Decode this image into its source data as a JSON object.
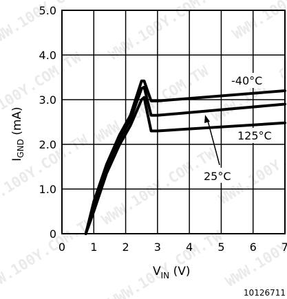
{
  "chart_data": {
    "type": "line",
    "title": "",
    "xlabel": "V",
    "xlabel_subscript": "IN",
    "xlabel_unit": "(V)",
    "ylabel": "I",
    "ylabel_subscript": "GND",
    "ylabel_unit": "(mA)",
    "xlim": [
      0,
      7
    ],
    "ylim": [
      0,
      5
    ],
    "x_ticks": [
      "0",
      "1",
      "2",
      "3",
      "4",
      "5",
      "6",
      "7"
    ],
    "y_ticks": [
      "0",
      "1.0",
      "2.0",
      "3.0",
      "4.0",
      "5.0"
    ],
    "grid": true,
    "series": [
      {
        "name": "-40°C",
        "points": [
          [
            0.75,
            0
          ],
          [
            1.0,
            0.72
          ],
          [
            1.4,
            1.55
          ],
          [
            1.8,
            2.2
          ],
          [
            2.15,
            2.65
          ],
          [
            2.5,
            3.42
          ],
          [
            2.58,
            3.42
          ],
          [
            2.8,
            2.97
          ],
          [
            3.0,
            2.97
          ],
          [
            7.0,
            3.2
          ]
        ]
      },
      {
        "name": "25°C",
        "points": [
          [
            0.75,
            0
          ],
          [
            1.0,
            0.62
          ],
          [
            1.4,
            1.45
          ],
          [
            1.8,
            2.1
          ],
          [
            2.15,
            2.55
          ],
          [
            2.5,
            3.25
          ],
          [
            2.58,
            3.28
          ],
          [
            2.8,
            2.65
          ],
          [
            3.0,
            2.65
          ],
          [
            7.0,
            2.9
          ]
        ]
      },
      {
        "name": "125°C",
        "points": [
          [
            0.75,
            0
          ],
          [
            1.0,
            0.5
          ],
          [
            1.4,
            1.35
          ],
          [
            1.8,
            1.98
          ],
          [
            2.15,
            2.42
          ],
          [
            2.5,
            3.0
          ],
          [
            2.58,
            3.05
          ],
          [
            2.8,
            2.3
          ],
          [
            3.0,
            2.3
          ],
          [
            7.0,
            2.48
          ]
        ]
      }
    ],
    "series_labels": [
      "-40°C",
      "25°C",
      "125°C"
    ]
  },
  "figure_id": "10126711",
  "watermark_text": "WWW.100Y.COM.TW"
}
